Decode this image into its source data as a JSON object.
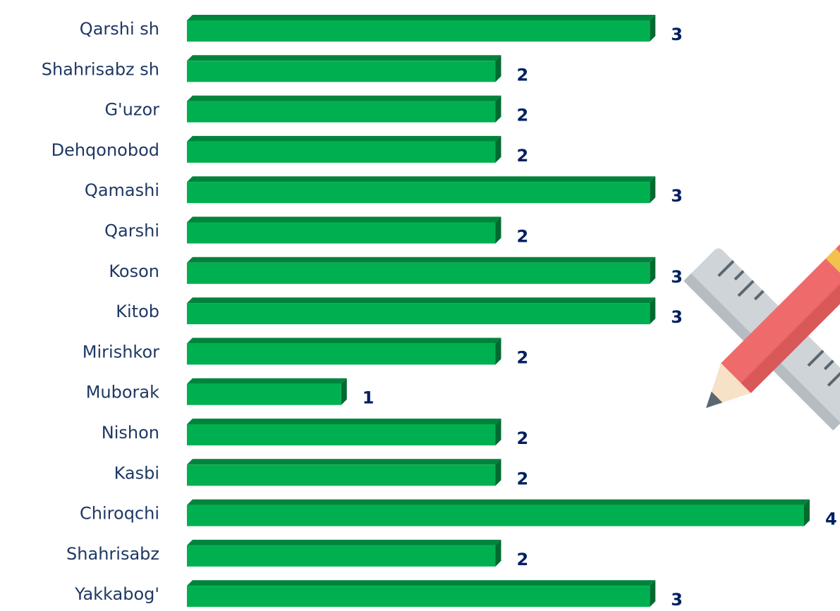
{
  "chart_data": {
    "type": "bar",
    "orientation": "horizontal",
    "categories": [
      "Qarshi sh",
      "Shahrisabz sh",
      "G'uzor",
      "Dehqonobod",
      "Qamashi",
      "Qarshi",
      "Koson",
      "Kitob",
      "Mirishkor",
      "Muborak",
      "Nishon",
      "Kasbi",
      "Chiroqchi",
      "Shahrisabz",
      "Yakkabog'"
    ],
    "values": [
      3,
      2,
      2,
      2,
      3,
      2,
      3,
      3,
      2,
      1,
      2,
      2,
      4,
      2,
      3
    ],
    "color": "#00b050",
    "xlim": [
      0,
      4
    ]
  }
}
